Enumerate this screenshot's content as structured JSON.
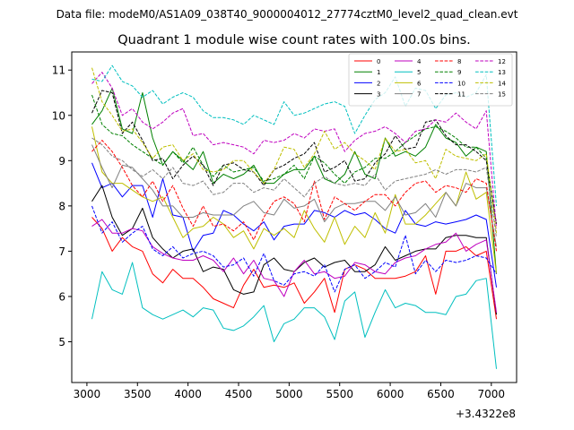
{
  "figure": {
    "suptitle": "Data file: modeM0/AS1A09_038T40_9000004012_27774cztM0_level2_quad_clean.evt"
  },
  "chart_data": {
    "type": "line",
    "title": "Quadrant 1 module wise count rates with 100.0s bins.",
    "xlabel": "",
    "ylabel": "",
    "x_offset_label": "+3.4322e8",
    "xlim": [
      2850,
      7250
    ],
    "ylim": [
      4.1,
      11.4
    ],
    "x_ticks": [
      3000,
      3500,
      4000,
      4500,
      5000,
      5500,
      6000,
      6500,
      7000
    ],
    "x_tick_labels": [
      "3000",
      "3500",
      "4000",
      "4500",
      "5000",
      "5500",
      "6000",
      "6500",
      "7000"
    ],
    "y_ticks": [
      5,
      6,
      7,
      8,
      9,
      10,
      11
    ],
    "y_tick_labels": [
      "5",
      "6",
      "7",
      "8",
      "9",
      "10",
      "11"
    ],
    "grid": false,
    "legend_position": "top-right",
    "x": [
      3050,
      3150,
      3250,
      3350,
      3450,
      3550,
      3650,
      3750,
      3850,
      3950,
      4050,
      4150,
      4250,
      4350,
      4450,
      4550,
      4650,
      4750,
      4850,
      4950,
      5050,
      5150,
      5250,
      5350,
      5450,
      5550,
      5650,
      5750,
      5850,
      5950,
      6050,
      6150,
      6250,
      6350,
      6450,
      6550,
      6650,
      6750,
      6850,
      6950,
      7050
    ],
    "series": [
      {
        "name": "0",
        "color": "#ff0000",
        "dash": "solid",
        "values": [
          7.75,
          7.5,
          7.0,
          7.3,
          7.1,
          7.0,
          6.5,
          6.3,
          6.6,
          6.4,
          6.4,
          6.2,
          5.95,
          5.85,
          5.75,
          6.25,
          6.6,
          6.2,
          6.25,
          6.2,
          6.3,
          5.85,
          6.1,
          6.4,
          5.65,
          6.6,
          6.7,
          6.6,
          6.4,
          6.4,
          6.4,
          6.45,
          6.55,
          6.9,
          6.05,
          7.0,
          7.0,
          7.1,
          6.9,
          7.0,
          5.5
        ]
      },
      {
        "name": "1",
        "color": "#008000",
        "dash": "solid",
        "values": [
          9.8,
          10.1,
          10.6,
          9.7,
          9.6,
          10.5,
          9.5,
          8.9,
          9.2,
          9.0,
          8.8,
          9.2,
          8.5,
          8.7,
          8.6,
          8.7,
          8.9,
          8.5,
          8.5,
          8.7,
          8.8,
          8.8,
          9.1,
          8.6,
          8.5,
          8.7,
          9.2,
          8.7,
          8.6,
          9.5,
          9.1,
          9.2,
          9.1,
          9.3,
          9.8,
          9.5,
          9.4,
          9.1,
          9.3,
          9.2,
          6.5
        ]
      },
      {
        "name": "2",
        "color": "#0000ff",
        "dash": "solid",
        "values": [
          8.95,
          8.4,
          8.5,
          8.2,
          8.45,
          8.45,
          7.75,
          8.6,
          7.8,
          7.75,
          7.0,
          7.35,
          7.4,
          7.9,
          7.8,
          7.6,
          7.45,
          7.65,
          7.25,
          7.55,
          7.6,
          7.6,
          7.9,
          7.85,
          7.75,
          7.9,
          7.8,
          7.85,
          7.7,
          7.5,
          7.4,
          7.9,
          7.6,
          7.55,
          7.65,
          7.6,
          7.65,
          7.7,
          7.8,
          7.7,
          6.2
        ]
      },
      {
        "name": "3",
        "color": "#000000",
        "dash": "solid",
        "values": [
          8.1,
          8.45,
          7.75,
          7.35,
          7.5,
          7.95,
          7.3,
          7.05,
          6.85,
          7.0,
          7.05,
          6.55,
          6.65,
          6.6,
          6.15,
          6.05,
          6.1,
          6.7,
          6.85,
          6.6,
          6.55,
          6.75,
          6.85,
          6.65,
          6.75,
          6.8,
          6.55,
          6.55,
          6.7,
          7.1,
          6.8,
          6.9,
          7.0,
          7.05,
          7.05,
          7.3,
          7.35,
          7.35,
          7.3,
          7.3,
          5.6
        ]
      },
      {
        "name": "4",
        "color": "#bf00bf",
        "dash": "solid",
        "values": [
          7.55,
          7.7,
          7.4,
          7.4,
          7.5,
          7.45,
          7.1,
          6.95,
          6.85,
          6.8,
          6.8,
          6.9,
          6.8,
          6.55,
          6.85,
          6.5,
          6.8,
          6.4,
          6.35,
          6.0,
          6.55,
          6.8,
          6.5,
          6.55,
          6.4,
          6.45,
          6.75,
          6.7,
          6.55,
          6.5,
          6.75,
          6.85,
          6.9,
          7.05,
          7.15,
          7.2,
          7.4,
          7.0,
          7.15,
          7.25,
          5.65
        ]
      },
      {
        "name": "5",
        "color": "#00bfbf",
        "dash": "solid",
        "values": [
          5.5,
          6.55,
          6.15,
          6.05,
          6.75,
          5.75,
          5.6,
          5.5,
          5.6,
          5.7,
          5.55,
          5.75,
          5.7,
          5.3,
          5.25,
          5.35,
          5.55,
          5.8,
          5.0,
          5.4,
          5.5,
          5.75,
          5.75,
          5.55,
          5.05,
          5.9,
          6.1,
          5.1,
          5.65,
          6.15,
          5.75,
          5.85,
          5.8,
          5.65,
          5.65,
          5.6,
          6.0,
          6.05,
          6.35,
          6.4,
          4.4
        ]
      },
      {
        "name": "6",
        "color": "#bfbf00",
        "dash": "solid",
        "values": [
          9.75,
          8.75,
          8.5,
          8.5,
          8.35,
          8.2,
          8.1,
          8.2,
          7.75,
          7.3,
          7.5,
          7.55,
          7.75,
          7.6,
          7.3,
          7.45,
          7.05,
          7.5,
          7.35,
          7.5,
          7.3,
          7.9,
          7.5,
          7.2,
          7.75,
          7.15,
          7.55,
          7.3,
          7.85,
          7.4,
          8.25,
          7.6,
          7.6,
          7.8,
          8.05,
          8.3,
          8.0,
          8.75,
          8.15,
          8.3,
          6.5
        ]
      },
      {
        "name": "7",
        "color": "#808080",
        "dash": "solid",
        "values": [
          9.35,
          8.85,
          8.4,
          8.9,
          8.85,
          8.6,
          8.35,
          8.0,
          8.0,
          7.75,
          7.75,
          7.85,
          7.8,
          7.8,
          7.8,
          8.0,
          8.1,
          7.85,
          7.8,
          8.15,
          7.95,
          8.0,
          8.15,
          7.65,
          7.95,
          8.05,
          8.05,
          8.1,
          8.1,
          7.9,
          8.2,
          7.8,
          7.85,
          8.05,
          7.75,
          8.3,
          8.0,
          8.5,
          8.4,
          8.4,
          7.1
        ]
      },
      {
        "name": "8",
        "color": "#ff0000",
        "dash": "dashed",
        "values": [
          9.2,
          9.45,
          9.2,
          8.85,
          8.45,
          8.2,
          8.55,
          8.1,
          8.45,
          7.95,
          7.55,
          8.0,
          7.55,
          7.6,
          7.45,
          7.65,
          7.25,
          7.75,
          8.1,
          8.2,
          8.05,
          7.65,
          8.55,
          7.7,
          8.2,
          8.05,
          7.9,
          8.1,
          8.25,
          8.25,
          8.0,
          8.3,
          8.5,
          8.55,
          8.3,
          8.45,
          8.4,
          8.3,
          8.6,
          8.5,
          7.0
        ]
      },
      {
        "name": "9",
        "color": "#008000",
        "dash": "dashed",
        "values": [
          10.45,
          9.8,
          9.6,
          9.55,
          9.35,
          9.2,
          9.05,
          8.9,
          9.2,
          8.95,
          9.3,
          8.9,
          8.65,
          8.9,
          8.75,
          8.8,
          8.85,
          8.55,
          8.6,
          8.7,
          8.9,
          8.6,
          9.1,
          8.95,
          8.7,
          8.5,
          8.75,
          8.85,
          9.05,
          9.05,
          9.2,
          9.4,
          9.55,
          9.7,
          9.75,
          9.65,
          9.5,
          9.3,
          9.3,
          9.05,
          7.6
        ]
      },
      {
        "name": "10",
        "color": "#0000ff",
        "dash": "dashed",
        "values": [
          8.0,
          7.4,
          7.65,
          7.2,
          7.4,
          7.55,
          7.05,
          6.9,
          7.1,
          6.85,
          6.95,
          7.0,
          6.9,
          6.65,
          6.7,
          6.85,
          6.45,
          6.95,
          6.35,
          6.25,
          6.5,
          6.55,
          6.45,
          6.7,
          6.1,
          6.6,
          6.7,
          6.4,
          6.55,
          6.75,
          6.65,
          7.35,
          6.5,
          6.8,
          6.55,
          6.8,
          6.75,
          6.8,
          6.9,
          6.85,
          6.5
        ]
      },
      {
        "name": "11",
        "color": "#000000",
        "dash": "dashed",
        "values": [
          10.05,
          10.55,
          10.5,
          9.6,
          9.85,
          9.45,
          9.0,
          9.05,
          8.6,
          8.9,
          9.1,
          8.9,
          8.45,
          8.9,
          8.95,
          8.8,
          8.75,
          8.45,
          8.8,
          8.9,
          9.05,
          9.15,
          9.4,
          8.75,
          8.85,
          9.0,
          8.55,
          8.6,
          8.95,
          9.15,
          9.55,
          9.25,
          9.3,
          9.85,
          9.9,
          9.55,
          9.35,
          9.35,
          9.2,
          9.0,
          7.6
        ]
      },
      {
        "name": "12",
        "color": "#bf00bf",
        "dash": "dashed",
        "values": [
          10.7,
          10.95,
          10.6,
          10.0,
          10.15,
          9.85,
          9.7,
          9.85,
          10.05,
          10.15,
          9.55,
          9.6,
          9.35,
          9.4,
          9.35,
          9.3,
          9.15,
          9.45,
          9.4,
          9.45,
          9.6,
          9.5,
          9.7,
          9.65,
          9.7,
          9.2,
          9.45,
          9.6,
          9.65,
          9.75,
          9.6,
          9.4,
          9.65,
          9.7,
          9.9,
          9.85,
          10.05,
          9.85,
          9.7,
          10.1,
          7.5
        ]
      },
      {
        "name": "13",
        "color": "#00bfbf",
        "dash": "dashed",
        "values": [
          10.8,
          10.75,
          11.1,
          10.75,
          10.65,
          10.4,
          10.55,
          10.25,
          10.4,
          10.5,
          10.4,
          10.1,
          9.95,
          9.95,
          9.9,
          9.8,
          10.0,
          9.9,
          9.8,
          10.3,
          10.0,
          10.05,
          10.15,
          10.25,
          10.3,
          10.2,
          9.6,
          10.0,
          10.35,
          10.5,
          10.85,
          10.2,
          10.6,
          10.55,
          10.15,
          10.45,
          10.5,
          10.4,
          10.5,
          10.9,
          8.0
        ]
      },
      {
        "name": "14",
        "color": "#bfbf00",
        "dash": "dashed",
        "values": [
          11.05,
          10.3,
          10.0,
          9.65,
          9.7,
          9.4,
          9.05,
          9.3,
          9.35,
          9.0,
          9.15,
          8.8,
          8.75,
          8.8,
          9.0,
          9.0,
          8.75,
          8.5,
          8.8,
          9.3,
          9.25,
          8.85,
          9.15,
          9.65,
          9.25,
          9.4,
          9.15,
          9.0,
          8.8,
          9.5,
          9.2,
          9.25,
          8.95,
          9.0,
          8.6,
          9.25,
          9.1,
          9.05,
          9.0,
          9.15,
          7.4
        ]
      },
      {
        "name": "15",
        "color": "#808080",
        "dash": "dashed",
        "values": [
          9.5,
          9.35,
          9.1,
          9.0,
          8.8,
          8.65,
          8.8,
          8.6,
          8.85,
          8.5,
          8.45,
          8.55,
          8.25,
          8.3,
          8.5,
          8.5,
          8.3,
          8.4,
          8.35,
          8.6,
          8.4,
          8.2,
          8.5,
          8.65,
          8.5,
          8.45,
          8.5,
          8.45,
          8.7,
          8.35,
          8.55,
          8.6,
          8.65,
          8.7,
          8.8,
          8.7,
          8.8,
          8.8,
          8.75,
          8.85,
          7.3
        ]
      }
    ]
  }
}
